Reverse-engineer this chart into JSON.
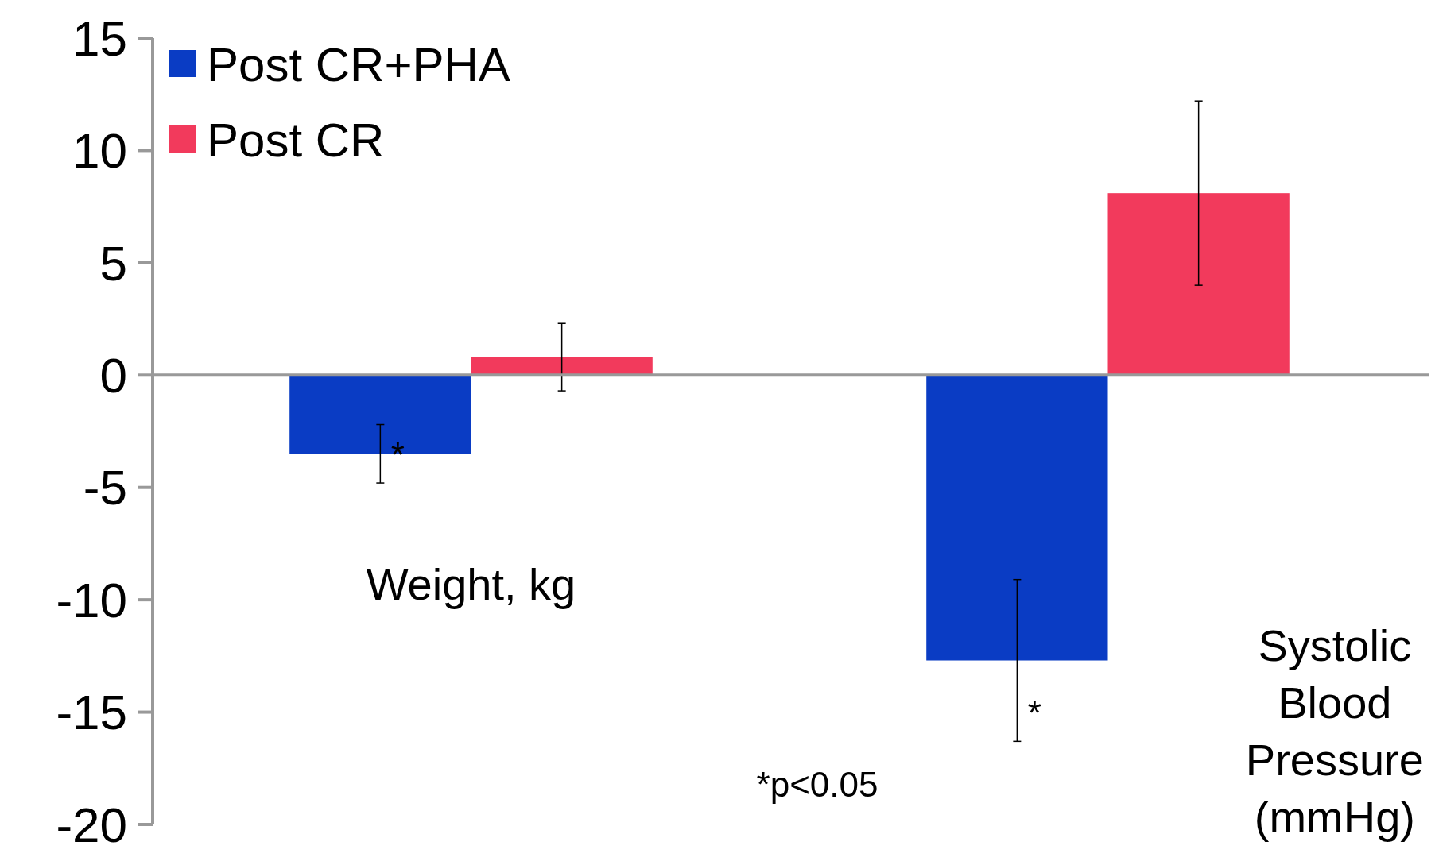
{
  "chart_data": {
    "type": "bar",
    "categories": [
      "Weight, kg",
      "Systolic Blood Pressure (mmHg)"
    ],
    "series": [
      {
        "name": "Post CR+PHA",
        "color": "#0a3cc4",
        "values": [
          -3.5,
          -12.7
        ],
        "errors": [
          [
            -4.8,
            -2.2
          ],
          [
            -16.3,
            -9.1
          ]
        ]
      },
      {
        "name": "Post CR",
        "color": "#f23a5c",
        "values": [
          0.8,
          8.1
        ],
        "errors": [
          [
            -0.7,
            2.3
          ],
          [
            4.0,
            12.2
          ]
        ]
      }
    ],
    "ylim": [
      -20,
      15
    ],
    "yticks": [
      -20,
      -15,
      -10,
      -5,
      0,
      5,
      10,
      15
    ],
    "legend": "top left",
    "annotations": [
      "*",
      "*",
      "*p<0.05"
    ]
  }
}
